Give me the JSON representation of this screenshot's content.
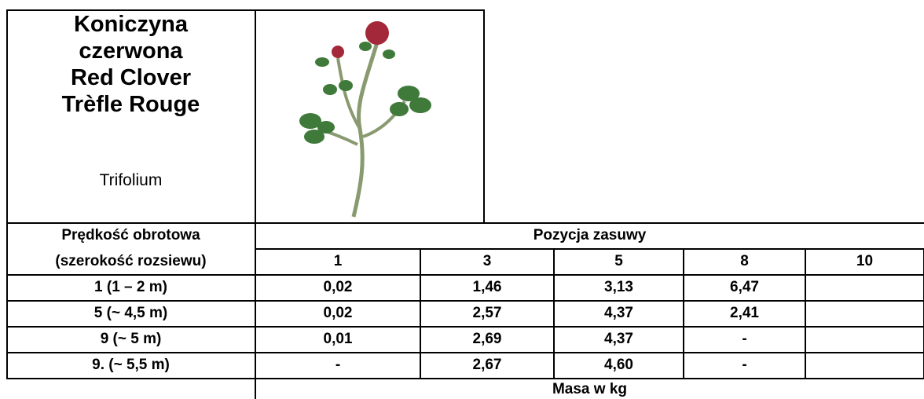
{
  "header": {
    "title_lines": [
      "Koniczyna",
      "czerwona",
      "Red Clover",
      "Trèfle Rouge"
    ],
    "latin": "Trifolium"
  },
  "table": {
    "row_header": [
      "Prędkość obrotowa",
      "(szerokość rozsiewu)"
    ],
    "column_group": "Pozycja zasuwy",
    "columns": [
      "1",
      "3",
      "5",
      "8",
      "10"
    ],
    "rows": [
      {
        "label": "1 (1 – 2 m)",
        "values": [
          "0,02",
          "1,46",
          "3,13",
          "6,47",
          null
        ]
      },
      {
        "label": "5 (~ 4,5 m)",
        "values": [
          "0,02",
          "2,57",
          "4,37",
          "2,41",
          null
        ]
      },
      {
        "label": "9 (~ 5 m)",
        "values": [
          "0,01",
          "2,69",
          "4,37",
          "-",
          null
        ]
      },
      {
        "label": "9. (~ 5,5 m)",
        "values": [
          "-",
          "2,67",
          "4,60",
          "-",
          null
        ]
      }
    ],
    "footer": "Masa w kg"
  }
}
